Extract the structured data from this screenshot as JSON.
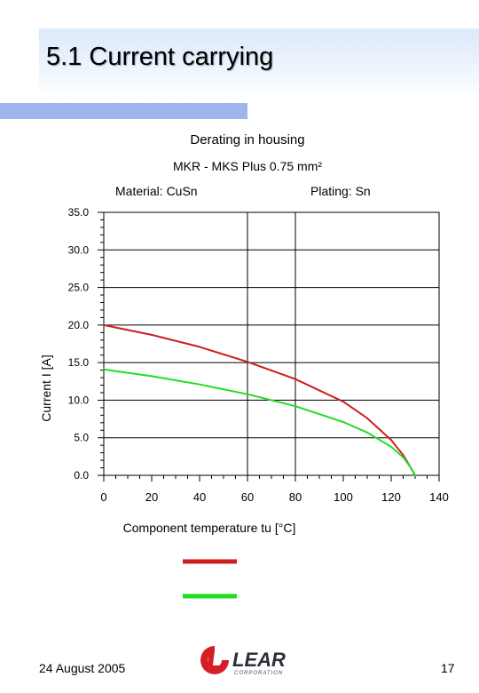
{
  "slide": {
    "title": "5.1 Current carrying",
    "footer_date": "24 August 2005",
    "page_number": "17",
    "accent_color": "#9db7ea"
  },
  "logo": {
    "name": "LEAR",
    "subtitle": "CORPORATION",
    "color": "#d51f26"
  },
  "chart_data": {
    "type": "line",
    "title": "Derating in housing",
    "subtitle": "MKR - MKS  Plus 0.75 mm²",
    "annotations": [
      "Material: CuSn",
      "Plating: Sn"
    ],
    "xlabel": "Component temperature tu [°C]",
    "ylabel": "Current I [A]",
    "xlim": [
      0,
      140
    ],
    "ylim": [
      0,
      35
    ],
    "xticks": [
      0,
      20,
      40,
      60,
      80,
      100,
      120,
      140
    ],
    "yticks": [
      "0.0",
      "5.0",
      "10.0",
      "15.0",
      "20.0",
      "25.0",
      "30.0",
      "35.0"
    ],
    "x_gridlines": [
      60,
      80
    ],
    "y_gridlines": [
      5,
      10,
      15,
      20,
      25,
      30
    ],
    "legend": "below",
    "series": [
      {
        "color": "#cc1f1f",
        "x": [
          0,
          20,
          40,
          60,
          80,
          100,
          110,
          120,
          125,
          128,
          130
        ],
        "y": [
          20.0,
          18.7,
          17.1,
          15.1,
          12.8,
          9.8,
          7.6,
          4.7,
          2.7,
          1.1,
          0.0
        ]
      },
      {
        "color": "#22dd22",
        "x": [
          0,
          20,
          40,
          60,
          80,
          100,
          110,
          120,
          125,
          128,
          130
        ],
        "y": [
          14.1,
          13.2,
          12.1,
          10.8,
          9.2,
          7.1,
          5.7,
          3.8,
          2.4,
          1.1,
          0.0
        ]
      }
    ]
  }
}
